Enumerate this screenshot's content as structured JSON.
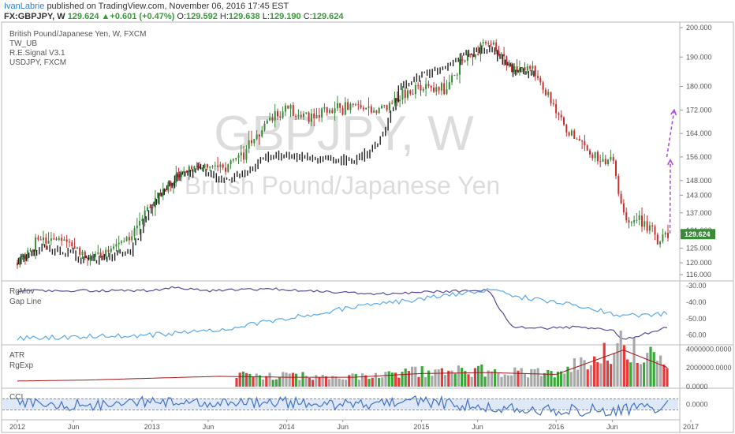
{
  "header": {
    "author": "IvanLabrie",
    "published": "published on TradingView.com, November 06, 2016 17:45 EST",
    "symbol": "FX:GBPJPY, W",
    "last": "129.624",
    "change": "+0.601 (+0.47%)",
    "o_label": "O:",
    "o": "129.592",
    "h_label": "H:",
    "h": "129.638",
    "l_label": "L:",
    "l": "129.190",
    "c_label": "C:",
    "c": "129.624"
  },
  "main_pane": {
    "legend": [
      "British Pound/Japanese Yen, W, FXCM",
      "TW_UB",
      "R.E.Signal V3.1",
      "USDJPY, FXCM"
    ],
    "watermark_big": "GBPJPY, W",
    "watermark_small": "British Pound/Japanese Yen",
    "last_price_tag": "129.624"
  },
  "rgmov_pane": {
    "legend": [
      "RgMov",
      "Gap Line"
    ]
  },
  "atr_pane": {
    "legend": [
      "ATR",
      "RgExp"
    ]
  },
  "cci_pane": {
    "legend": [
      "CCI"
    ]
  },
  "colors": {
    "up": "#3a8a3a",
    "down": "#c83030",
    "rgmov": "#5b4a9a",
    "gapline": "#5aaae8",
    "cci": "#4472c4",
    "purple": "#b050e0",
    "bar_grey": "#a8a8a8",
    "bar_red": "#e83a3a",
    "bar_green": "#3aa83a"
  },
  "chart_data": [
    {
      "type": "line",
      "title": "British Pound/Japanese Yen, W, FXCM",
      "x_ticks": [
        "2012",
        "Jun",
        "2013",
        "Jun",
        "2014",
        "Jun",
        "2015",
        "Jun",
        "2016",
        "Jun",
        "2017"
      ],
      "y_ticks": [
        "200.000",
        "190.000",
        "180.000",
        "172.000",
        "164.000",
        "156.000",
        "148.000",
        "143.000",
        "137.000",
        "131.000",
        "125.000",
        "120.000",
        "116.000"
      ],
      "ylim": [
        116,
        200
      ],
      "series": [
        {
          "name": "GBPJPY",
          "x": [
            "2012-01",
            "2012-03",
            "2012-05",
            "2012-07",
            "2012-09",
            "2012-11",
            "2013-01",
            "2013-03",
            "2013-05",
            "2013-07",
            "2013-09",
            "2013-11",
            "2014-01",
            "2014-03",
            "2014-05",
            "2014-07",
            "2014-09",
            "2014-11",
            "2015-01",
            "2015-03",
            "2015-05",
            "2015-07",
            "2015-09",
            "2015-11",
            "2016-01",
            "2016-02",
            "2016-04",
            "2016-06",
            "2016-07",
            "2016-09",
            "2016-10",
            "2016-11"
          ],
          "values": [
            120,
            128,
            127,
            122,
            124,
            128,
            141,
            148,
            153,
            152,
            156,
            168,
            172,
            170,
            172,
            173,
            172,
            176,
            180,
            179,
            190,
            195,
            186,
            186,
            172,
            166,
            156,
            155,
            136,
            134,
            127,
            129.6
          ]
        },
        {
          "name": "USDJPY",
          "x": [
            "2012-01",
            "2012-03",
            "2012-05",
            "2012-07",
            "2012-09",
            "2012-11",
            "2013-01",
            "2013-03",
            "2013-05",
            "2013-07",
            "2013-09",
            "2013-11",
            "2014-01",
            "2014-03",
            "2014-05",
            "2014-07",
            "2014-09",
            "2014-11",
            "2015-01",
            "2015-03",
            "2015-05",
            "2015-07",
            "2015-09",
            "2015-11"
          ],
          "values": [
            121,
            125,
            124,
            121,
            122,
            124,
            140,
            149,
            152,
            148,
            150,
            156,
            157,
            155,
            155,
            155,
            160,
            180,
            184,
            186,
            192,
            193,
            185,
            184
          ]
        }
      ],
      "annotations": [
        "129.624"
      ]
    },
    {
      "type": "line",
      "title": "RgMov",
      "y_ticks": [
        "-30.00",
        "-40.00",
        "-50.00",
        "-60.00"
      ],
      "ylim": [
        -65,
        -28
      ],
      "series": [
        {
          "name": "RgMov",
          "x": [
            "2012-01",
            "2012-07",
            "2013-01",
            "2013-03",
            "2013-06",
            "2013-12",
            "2014-06",
            "2014-09",
            "2015-01",
            "2015-05",
            "2015-07",
            "2015-09",
            "2015-12",
            "2016-03",
            "2016-06",
            "2016-07",
            "2016-11"
          ],
          "values": [
            -33,
            -33,
            -33,
            -31,
            -33,
            -32,
            -34,
            -35,
            -34,
            -33,
            -33,
            -55,
            -56,
            -55,
            -57,
            -63,
            -55
          ]
        },
        {
          "name": "Gap Line",
          "x": [
            "2012-01",
            "2012-07",
            "2013-01",
            "2013-07",
            "2014-01",
            "2014-07",
            "2015-01",
            "2015-07",
            "2015-09",
            "2016-01",
            "2016-07",
            "2016-11"
          ],
          "values": [
            -62,
            -61,
            -60,
            -57,
            -50,
            -43,
            -38,
            -32,
            -36,
            -40,
            -48,
            -47
          ]
        }
      ]
    },
    {
      "type": "bar",
      "title": "ATR",
      "y_ticks": [
        "4000000.0000",
        "2000000.0000",
        "0.0000"
      ],
      "ylim": [
        0,
        4200000
      ],
      "series": [
        {
          "name": "RgExp",
          "x": [
            "2012-01",
            "2012-07",
            "2013-01",
            "2013-07",
            "2014-01",
            "2014-07",
            "2015-01",
            "2015-07",
            "2016-01",
            "2016-07",
            "2016-11"
          ],
          "values": [
            600000,
            700000,
            900000,
            1100000,
            1000000,
            1000000,
            1400000,
            1500000,
            1300000,
            3900000,
            2000000
          ]
        }
      ]
    },
    {
      "type": "line",
      "title": "CCI",
      "y_ticks": [
        "0.0000"
      ],
      "ylim": [
        -250,
        250
      ],
      "series": [
        {
          "name": "CCI",
          "x": [
            "2012-01",
            "2012-07",
            "2013-01",
            "2013-07",
            "2014-01",
            "2014-07",
            "2015-01",
            "2015-07",
            "2016-01",
            "2016-07",
            "2016-11"
          ],
          "values": [
            60,
            -40,
            120,
            20,
            80,
            -30,
            90,
            -60,
            -180,
            -160,
            -60
          ]
        }
      ]
    }
  ]
}
